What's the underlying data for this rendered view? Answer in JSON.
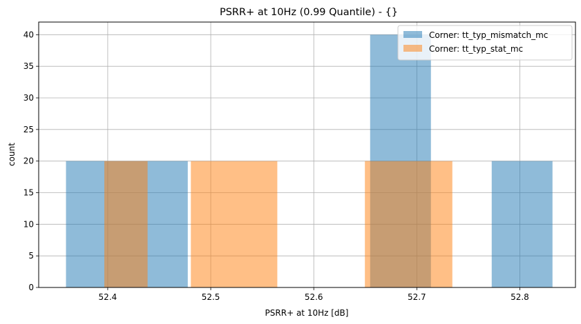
{
  "chart_data": {
    "type": "bar",
    "title": "PSRR+ at 10Hz (0.99 Quantile) - {}",
    "xlabel": "PSRR+ at 10Hz [dB]",
    "ylabel": "count",
    "xlim": [
      52.333,
      52.854
    ],
    "ylim": [
      0,
      42
    ],
    "xticks": [
      "52.4",
      "52.5",
      "52.6",
      "52.7",
      "52.8"
    ],
    "xtick_values": [
      52.4,
      52.5,
      52.6,
      52.7,
      52.8
    ],
    "yticks": [
      "0",
      "5",
      "10",
      "15",
      "20",
      "25",
      "30",
      "35",
      "40"
    ],
    "ytick_values": [
      0,
      5,
      10,
      15,
      20,
      25,
      30,
      35,
      40
    ],
    "grid": true,
    "legend_position": "top-right",
    "series": [
      {
        "name": "Corner: tt_typ_mismatch_mc",
        "color": "#1f77b4",
        "opacity": 0.5,
        "bins": [
          {
            "x0": 52.3595,
            "x1": 52.4777,
            "count": 20
          },
          {
            "x0": 52.6547,
            "x1": 52.7137,
            "count": 40
          },
          {
            "x0": 52.7727,
            "x1": 52.8317,
            "count": 20
          }
        ]
      },
      {
        "name": "Corner: tt_typ_stat_mc",
        "color": "#ff7f0e",
        "opacity": 0.5,
        "bins": [
          {
            "x0": 52.3967,
            "x1": 52.4387,
            "count": 20
          },
          {
            "x0": 52.4807,
            "x1": 52.5646,
            "count": 20
          },
          {
            "x0": 52.6496,
            "x1": 52.7345,
            "count": 20
          }
        ]
      }
    ]
  }
}
